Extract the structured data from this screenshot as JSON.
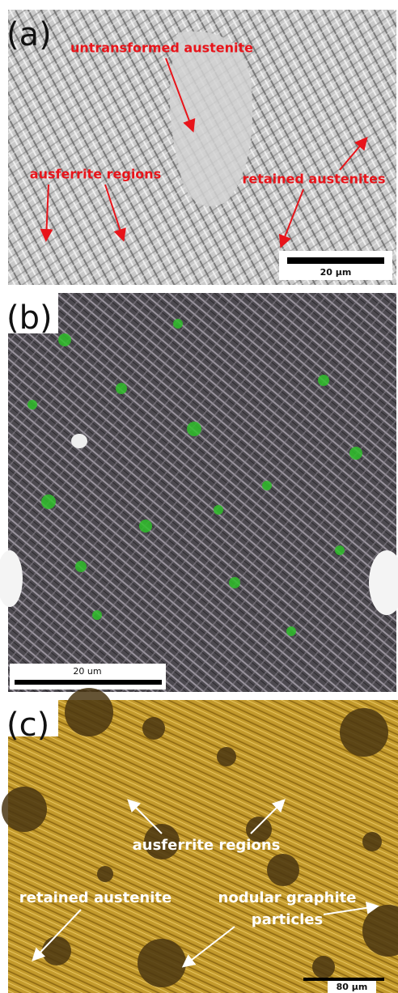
{
  "panels": [
    {
      "label": "(a)",
      "annotations": [
        "untransformed austenite",
        "ausferrite regions",
        "retained austenites"
      ],
      "scale_bar": "20 µm"
    },
    {
      "label": "(b)",
      "scale_bar": "20 um"
    },
    {
      "label": "(c)",
      "annotations": [
        "ausferrite regions",
        "retained austenite"
      ],
      "annotation_lines": [
        "nodular graphite",
        "particles"
      ],
      "scale_bar": "80 µm"
    }
  ]
}
